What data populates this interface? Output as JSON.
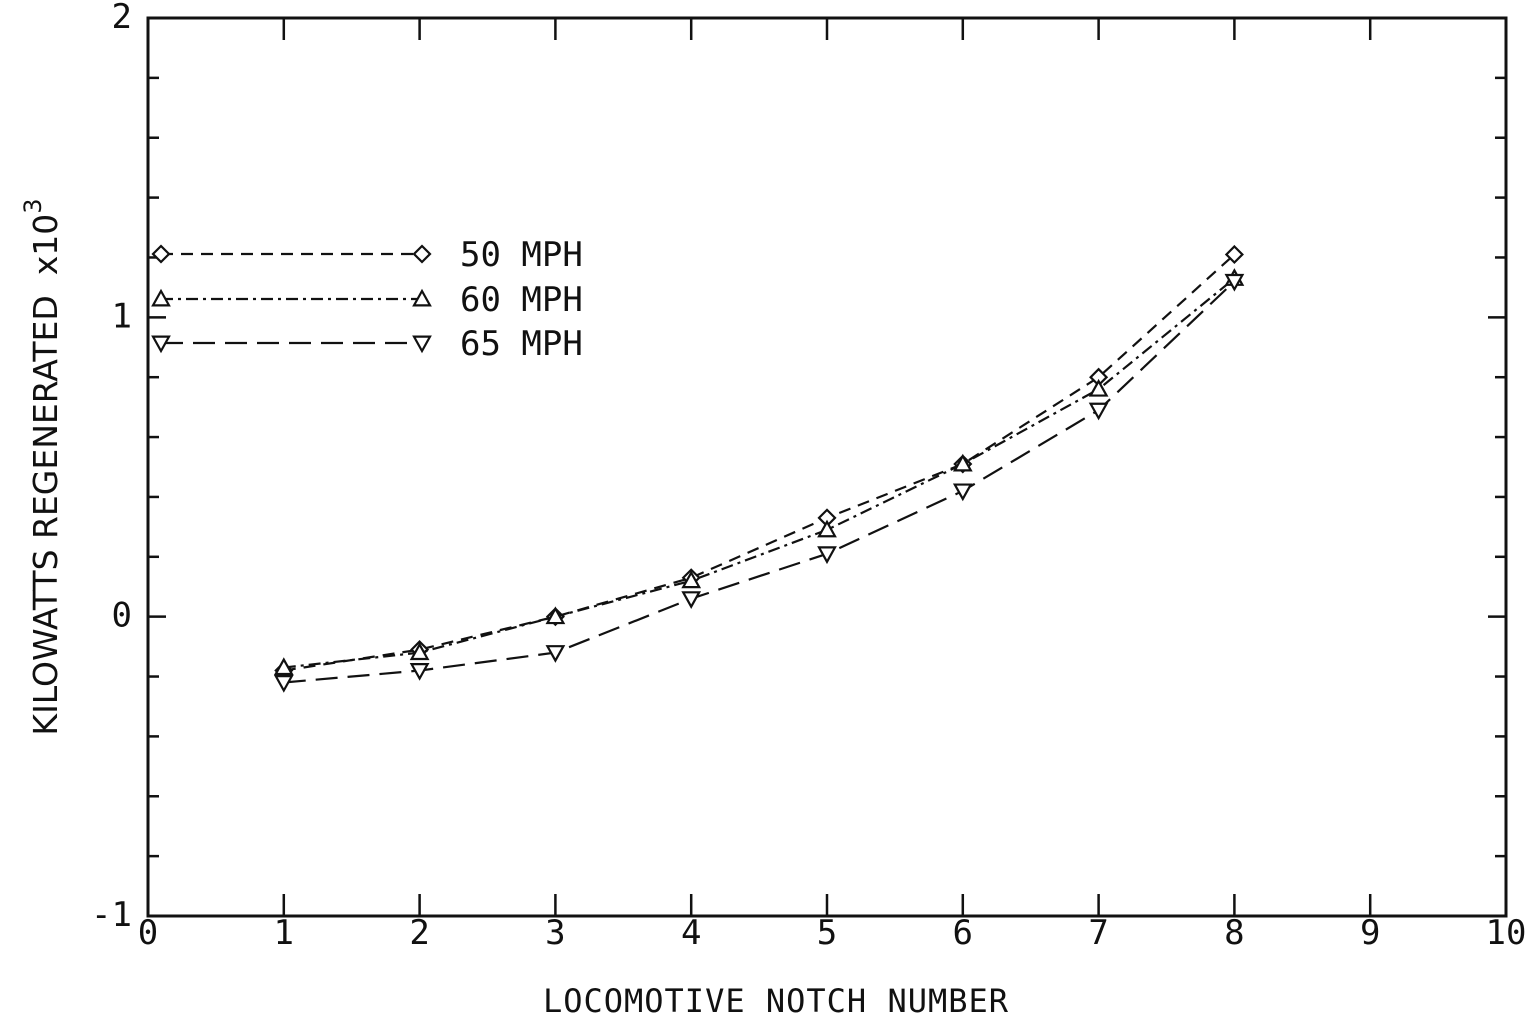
{
  "chart_data": {
    "type": "line",
    "title": "",
    "xlabel": "LOCOMOTIVE NOTCH NUMBER",
    "ylabel": "KILOWATTS REGENERATED",
    "ylabel_multiplier": "x10",
    "ylabel_exponent": "3",
    "xlim": [
      0,
      10
    ],
    "ylim": [
      -1,
      2
    ],
    "x_ticks": [
      "0",
      "1",
      "2",
      "3",
      "4",
      "5",
      "6",
      "7",
      "8",
      "9",
      "10"
    ],
    "y_ticks": [
      "-1",
      "0",
      "1",
      "2"
    ],
    "grid": false,
    "legend_position": "upper-left",
    "x": [
      1,
      2,
      3,
      4,
      5,
      6,
      7,
      8
    ],
    "series": [
      {
        "name": "50 MPH",
        "marker": "diamond",
        "dash": "dashed",
        "values": [
          -0.18,
          -0.11,
          0.0,
          0.13,
          0.33,
          0.51,
          0.8,
          1.21
        ]
      },
      {
        "name": "60 MPH",
        "marker": "triangle-up",
        "dash": "dash-dot",
        "values": [
          -0.17,
          -0.12,
          0.0,
          0.12,
          0.29,
          0.51,
          0.76,
          1.13
        ]
      },
      {
        "name": "65 MPH",
        "marker": "triangle-down",
        "dash": "long-dash",
        "values": [
          -0.22,
          -0.18,
          -0.12,
          0.06,
          0.21,
          0.42,
          0.69,
          1.12
        ]
      }
    ]
  }
}
